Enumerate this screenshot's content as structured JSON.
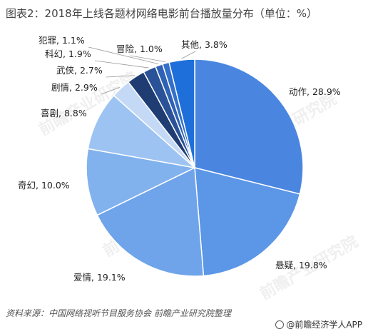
{
  "title": "图表2：2018年上线各题材网络电影前台播放量分布（单位：%）",
  "source": "资料来源：中国网络视听节目服务协会  前瞻产业研究院整理",
  "brand": "@前瞻经济学人APP",
  "chart_data": {
    "type": "pie",
    "title": "图表2：2018年上线各题材网络电影前台播放量分布（单位：%）",
    "unit": "%",
    "slices": [
      {
        "name": "动作",
        "value": 28.9,
        "label": "动作, 28.9%",
        "color": "#4A86E0"
      },
      {
        "name": "悬疑",
        "value": 19.8,
        "label": "悬疑, 19.8%",
        "color": "#5C96E6"
      },
      {
        "name": "爱情",
        "value": 19.1,
        "label": "爱情, 19.1%",
        "color": "#6FA4EA"
      },
      {
        "name": "奇幻",
        "value": 10.0,
        "label": "奇幻, 10.0%",
        "color": "#82B2EE"
      },
      {
        "name": "喜剧",
        "value": 8.8,
        "label": "喜剧, 8.8%",
        "color": "#9DC3F2"
      },
      {
        "name": "剧情",
        "value": 2.9,
        "label": "剧情, 2.9%",
        "color": "#C4D9F5"
      },
      {
        "name": "武侠",
        "value": 2.7,
        "label": "武侠, 2.7%",
        "color": "#1F3D73"
      },
      {
        "name": "科幻",
        "value": 1.9,
        "label": "科幻, 1.9%",
        "color": "#2A5298"
      },
      {
        "name": "犯罪",
        "value": 1.1,
        "label": "犯罪, 1.1%",
        "color": "#2F62B6"
      },
      {
        "name": "冒险",
        "value": 1.0,
        "label": "冒险, 1.0%",
        "color": "#3470C8"
      },
      {
        "name": "其他",
        "value": 3.8,
        "label": "其他, 3.8%",
        "color": "#1E6FD9"
      }
    ],
    "watermark": "前瞻产业研究院"
  }
}
